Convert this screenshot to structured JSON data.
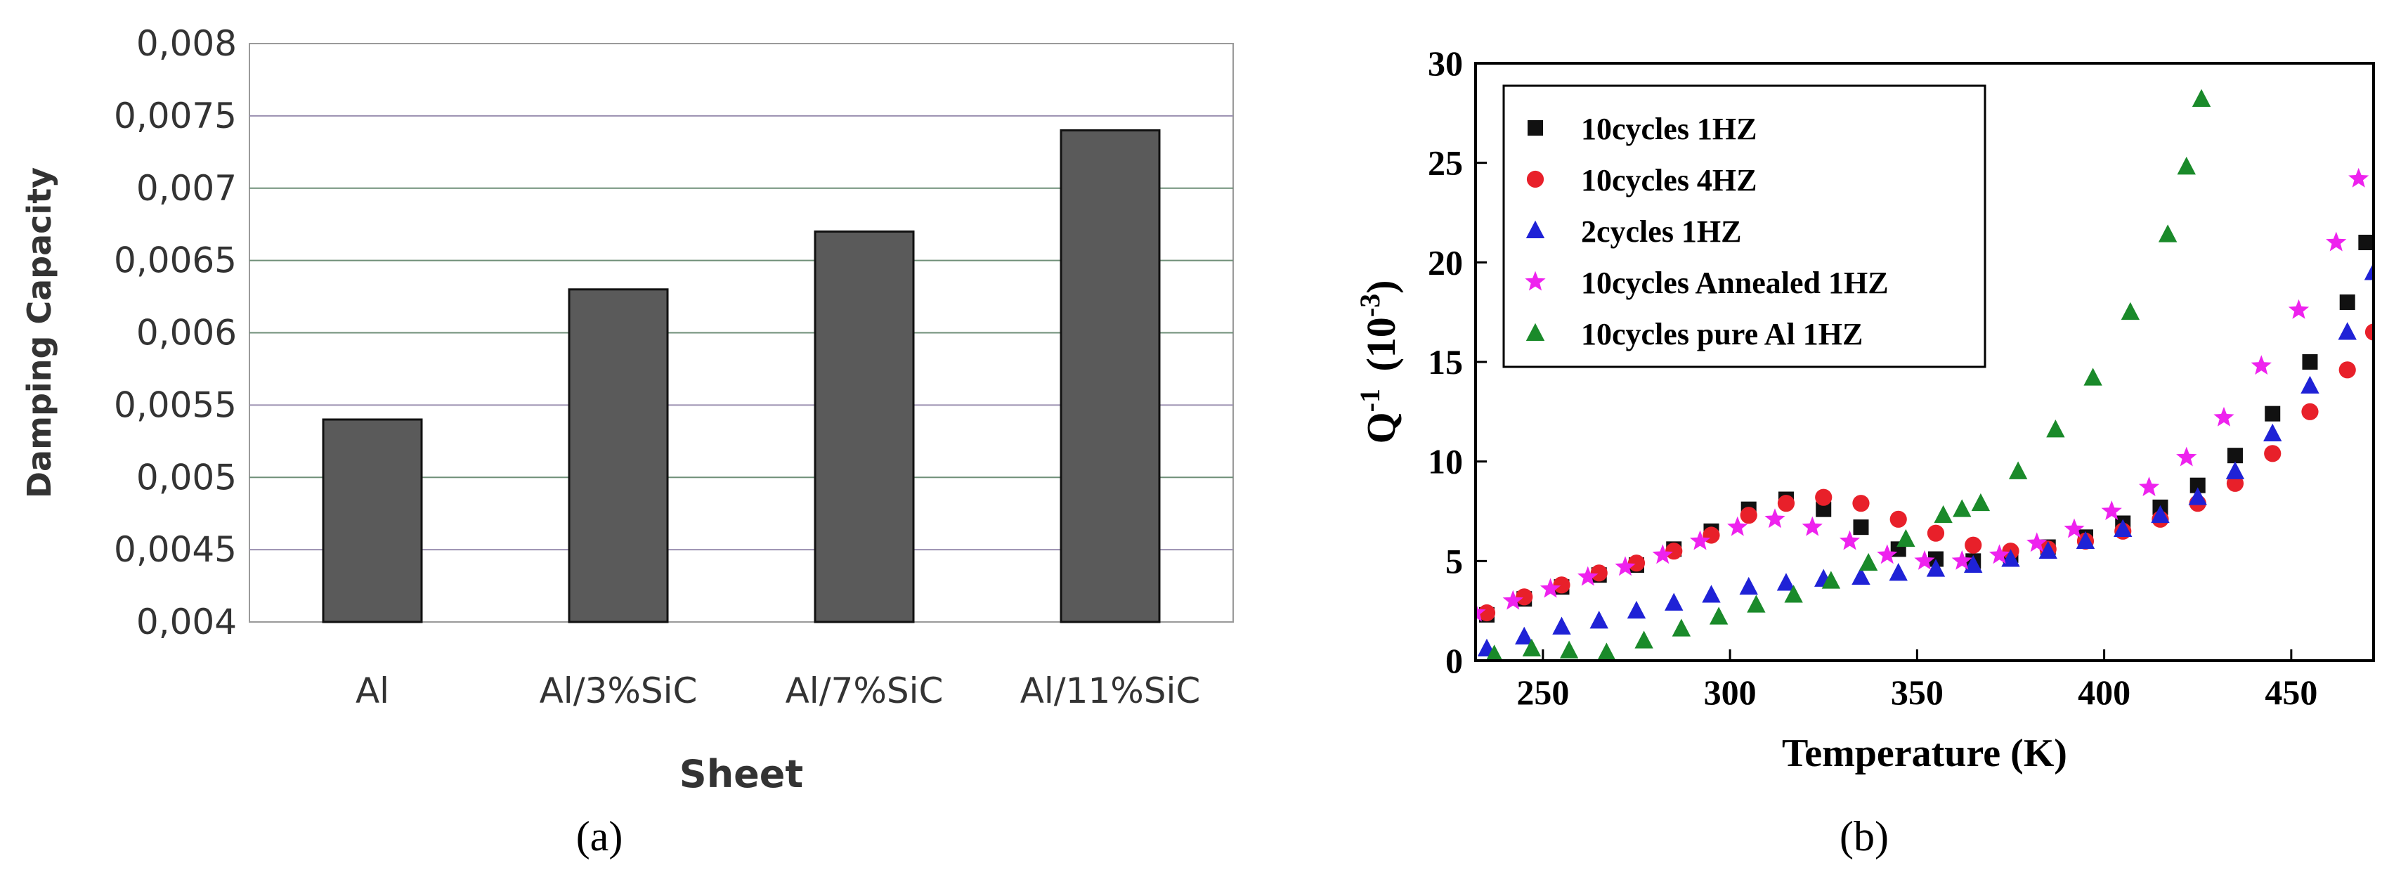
{
  "chart_data": [
    {
      "panel": "(a)",
      "type": "bar",
      "xlabel": "Sheet",
      "ylabel": "Damping Capacity",
      "ylim": [
        0.004,
        0.008
      ],
      "yticks": [
        "0,004",
        "0,0045",
        "0,005",
        "0,0055",
        "0,006",
        "0,0065",
        "0,007",
        "0,0075",
        "0,008"
      ],
      "categories": [
        "Al",
        "Al/3%SiC",
        "Al/7%SiC",
        "Al/11%SiC"
      ],
      "values": [
        0.0054,
        0.0063,
        0.0067,
        0.0074
      ],
      "bar_color": "#5a5a5a",
      "grid": true
    },
    {
      "panel": "(b)",
      "type": "scatter",
      "xlabel": "Temperature (K)",
      "ylabel_base": "Q",
      "ylabel_sup": "-1",
      "ylabel_unit_base": "(10",
      "ylabel_unit_sup": "-3",
      "ylabel_unit_end": ")",
      "xlim": [
        232,
        472
      ],
      "ylim": [
        0,
        30
      ],
      "xticks": [
        250,
        300,
        350,
        400,
        450
      ],
      "yticks": [
        0,
        5,
        10,
        15,
        20,
        25,
        30
      ],
      "legend_position": "top-left",
      "series": [
        {
          "name": "10cycles  1HZ",
          "marker": "square",
          "color": "#111111",
          "x": [
            235,
            245,
            255,
            265,
            275,
            285,
            295,
            305,
            315,
            325,
            335,
            345,
            355,
            365,
            375,
            385,
            395,
            405,
            415,
            425,
            435,
            445,
            455,
            465,
            470
          ],
          "y": [
            2.3,
            3.1,
            3.7,
            4.3,
            4.8,
            5.6,
            6.5,
            7.6,
            8.1,
            7.6,
            6.7,
            5.6,
            5.1,
            5.0,
            5.3,
            5.7,
            6.2,
            6.9,
            7.7,
            8.8,
            10.3,
            12.4,
            15.0,
            18.0,
            21.0
          ]
        },
        {
          "name": "10cycles  4HZ",
          "marker": "circle",
          "color": "#e8202a",
          "x": [
            235,
            245,
            255,
            265,
            275,
            285,
            295,
            305,
            315,
            325,
            335,
            345,
            355,
            365,
            375,
            385,
            395,
            405,
            415,
            425,
            435,
            445,
            455,
            465,
            472
          ],
          "y": [
            2.4,
            3.2,
            3.8,
            4.4,
            4.9,
            5.5,
            6.3,
            7.3,
            7.9,
            8.2,
            7.9,
            7.1,
            6.4,
            5.8,
            5.5,
            5.6,
            6.0,
            6.5,
            7.1,
            7.9,
            8.9,
            10.4,
            12.5,
            14.6,
            16.5
          ]
        },
        {
          "name": "2cycles    1HZ",
          "marker": "triangle",
          "color": "#1f22d6",
          "x": [
            235,
            245,
            255,
            265,
            275,
            285,
            295,
            305,
            315,
            325,
            335,
            345,
            355,
            365,
            375,
            385,
            395,
            405,
            415,
            425,
            435,
            445,
            455,
            465,
            472
          ],
          "y": [
            0.6,
            1.2,
            1.7,
            2.0,
            2.5,
            2.9,
            3.3,
            3.7,
            3.9,
            4.1,
            4.2,
            4.4,
            4.6,
            4.8,
            5.1,
            5.5,
            6.0,
            6.6,
            7.3,
            8.2,
            9.5,
            11.4,
            13.8,
            16.5,
            19.5
          ]
        },
        {
          "name": "10cycles  Annealed 1HZ",
          "marker": "star",
          "color": "#ee22ee",
          "x": [
            232,
            242,
            252,
            262,
            272,
            282,
            292,
            302,
            312,
            322,
            332,
            342,
            352,
            362,
            372,
            382,
            392,
            402,
            412,
            422,
            432,
            442,
            452,
            462,
            468
          ],
          "y": [
            2.4,
            3.0,
            3.6,
            4.2,
            4.7,
            5.3,
            6.0,
            6.7,
            7.1,
            6.7,
            6.0,
            5.3,
            5.0,
            5.0,
            5.3,
            5.9,
            6.6,
            7.5,
            8.7,
            10.2,
            12.2,
            14.8,
            17.6,
            21.0,
            24.2
          ]
        },
        {
          "name": "10cycles    pure Al  1HZ",
          "marker": "triangle",
          "color": "#1a8a2a",
          "x": [
            237,
            247,
            257,
            267,
            277,
            287,
            297,
            307,
            317,
            327,
            337,
            347,
            357,
            362,
            367,
            377,
            387,
            397,
            407,
            417,
            422,
            426
          ],
          "y": [
            0.3,
            0.6,
            0.5,
            0.4,
            1.0,
            1.6,
            2.2,
            2.8,
            3.3,
            4.0,
            4.9,
            6.1,
            7.3,
            7.6,
            7.9,
            9.5,
            11.6,
            14.2,
            17.5,
            21.4,
            24.8,
            28.2
          ]
        }
      ]
    }
  ],
  "captions": {
    "a": "(a)",
    "b": "(b)"
  }
}
